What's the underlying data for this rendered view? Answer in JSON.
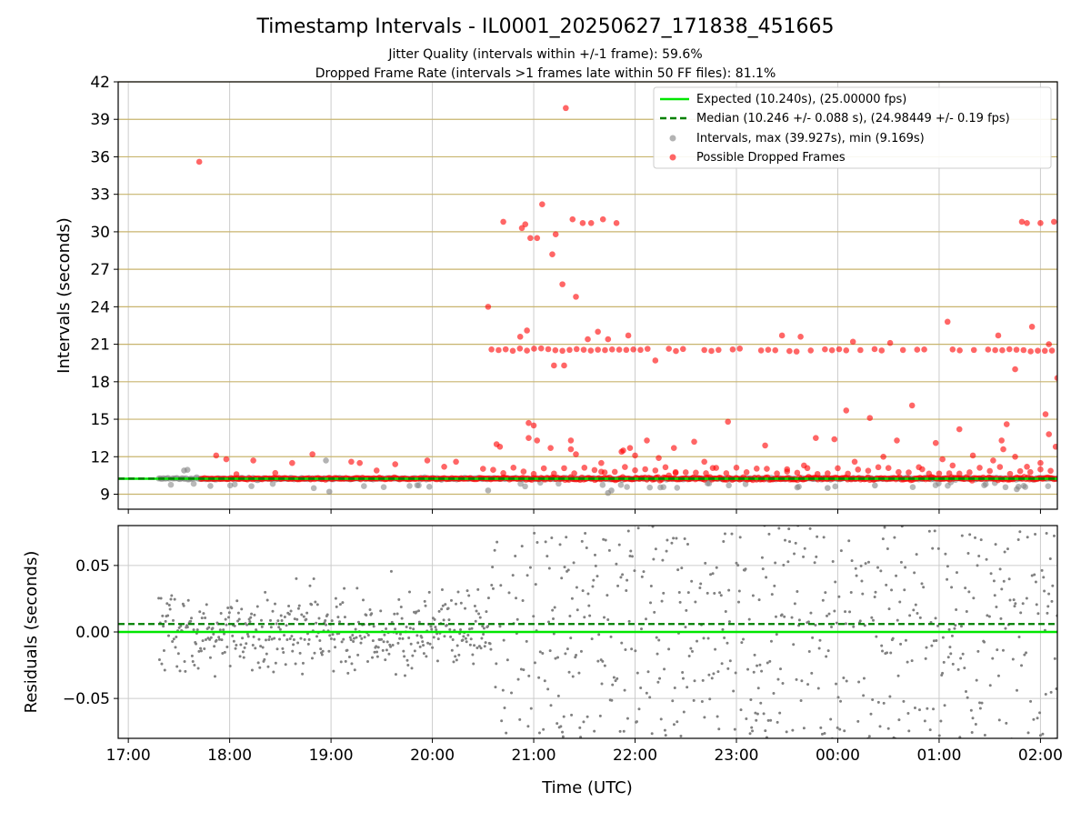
{
  "title": "Timestamp Intervals - IL0001_20250627_171838_451665",
  "subtitle1": "Jitter Quality (intervals within +/-1 frame): 59.6%",
  "subtitle2": "Dropped Frame Rate (intervals >1 frames late within 50 FF files): 81.1%",
  "colors": {
    "expected": "#00e600",
    "median": "#008000",
    "intervals": "#808080",
    "dropped": "#ff0000",
    "hgrid": "#c8b46e",
    "vgrid": "#cccccc"
  },
  "chart_data": [
    {
      "type": "scatter",
      "name": "intervals",
      "xlabel": "",
      "ylabel": "Intervals (seconds)",
      "ylim": [
        7.8,
        42
      ],
      "yticks": [
        9,
        12,
        15,
        18,
        21,
        24,
        27,
        30,
        33,
        36,
        39,
        42
      ],
      "xlim": [
        "16:54",
        "02:10"
      ],
      "grid": "horizontal tan + vertical gray",
      "legend_position": "top-right",
      "legend": [
        "Expected (10.240s), (25.00000 fps)",
        "Median (10.246 +/- 0.088 s), (24.98449 +/- 0.19 fps)",
        "Intervals, max (39.927s), min (9.169s)",
        "Possible Dropped Frames"
      ],
      "lines": {
        "expected": 10.24,
        "median": 10.246,
        "start": "17:18"
      },
      "dropped_outliers": [
        [
          "17:42",
          35.6
        ],
        [
          "17:52",
          12.1
        ],
        [
          "17:58",
          11.8
        ],
        [
          "18:04",
          10.6
        ],
        [
          "18:14",
          11.7
        ],
        [
          "18:27",
          10.7
        ],
        [
          "18:37",
          11.5
        ],
        [
          "18:49",
          12.2
        ],
        [
          "19:12",
          11.6
        ],
        [
          "19:17",
          11.5
        ],
        [
          "19:27",
          10.9
        ],
        [
          "19:38",
          11.4
        ],
        [
          "19:57",
          11.7
        ],
        [
          "20:07",
          11.2
        ],
        [
          "20:14",
          11.6
        ],
        [
          "20:38",
          13.0
        ],
        [
          "20:40",
          12.8
        ],
        [
          "20:57",
          13.5
        ],
        [
          "21:10",
          12.7
        ],
        [
          "21:22",
          12.6
        ],
        [
          "21:40",
          11.5
        ],
        [
          "21:52",
          12.4
        ],
        [
          "21:57",
          12.7
        ],
        [
          "22:14",
          11.9
        ],
        [
          "22:20",
          10.5
        ],
        [
          "22:24",
          10.7
        ],
        [
          "22:35",
          13.2
        ],
        [
          "22:41",
          11.6
        ],
        [
          "22:55",
          14.8
        ],
        [
          "22:00",
          12.1
        ],
        [
          "22:07",
          13.3
        ],
        [
          "22:23",
          12.7
        ],
        [
          "22:46",
          11.1
        ],
        [
          "23:17",
          12.9
        ],
        [
          "23:40",
          11.3
        ],
        [
          "23:47",
          13.5
        ],
        [
          "23:58",
          13.4
        ],
        [
          "00:05",
          15.7
        ],
        [
          "00:19",
          15.1
        ],
        [
          "00:35",
          13.3
        ],
        [
          "00:44",
          16.1
        ],
        [
          "00:58",
          13.1
        ],
        [
          "01:02",
          11.8
        ],
        [
          "01:12",
          14.2
        ],
        [
          "01:20",
          12.1
        ],
        [
          "01:32",
          11.7
        ],
        [
          "01:38",
          12.6
        ],
        [
          "01:45",
          12.0
        ],
        [
          "01:52",
          11.2
        ],
        [
          "02:00",
          11.5
        ],
        [
          "01:08",
          11.3
        ],
        [
          "00:27",
          12.0
        ],
        [
          "00:50",
          11.0
        ],
        [
          "00:10",
          11.6
        ],
        [
          "23:30",
          11.0
        ]
      ],
      "dropped_high": [
        [
          "20:33",
          24.0
        ],
        [
          "20:42",
          30.8
        ],
        [
          "20:53",
          30.3
        ],
        [
          "20:55",
          30.6
        ],
        [
          "20:58",
          29.5
        ],
        [
          "21:02",
          29.5
        ],
        [
          "21:11",
          28.2
        ],
        [
          "21:13",
          29.8
        ],
        [
          "21:17",
          25.8
        ],
        [
          "21:19",
          39.9
        ],
        [
          "21:23",
          31.0
        ],
        [
          "21:25",
          24.8
        ],
        [
          "21:29",
          30.7
        ],
        [
          "21:34",
          30.7
        ],
        [
          "21:41",
          31.0
        ],
        [
          "21:49",
          30.7
        ],
        [
          "21:05",
          32.2
        ],
        [
          "21:12",
          19.3
        ],
        [
          "21:18",
          19.3
        ],
        [
          "21:38",
          22.0
        ],
        [
          "21:44",
          21.4
        ],
        [
          "21:56",
          21.7
        ],
        [
          "22:12",
          19.7
        ],
        [
          "20:56",
          22.1
        ],
        [
          "20:52",
          21.6
        ],
        [
          "21:32",
          21.4
        ],
        [
          "23:27",
          21.7
        ],
        [
          "23:38",
          21.6
        ],
        [
          "01:05",
          22.8
        ],
        [
          "01:35",
          21.7
        ],
        [
          "01:55",
          22.4
        ],
        [
          "01:45",
          19.0
        ],
        [
          "02:05",
          21.0
        ],
        [
          "00:09",
          21.2
        ],
        [
          "00:31",
          21.1
        ],
        [
          "01:49",
          30.8
        ],
        [
          "01:52",
          30.7
        ],
        [
          "02:00",
          30.7
        ],
        [
          "02:08",
          30.8
        ],
        [
          "02:10",
          18.3
        ],
        [
          "02:03",
          15.4
        ],
        [
          "02:05",
          13.8
        ],
        [
          "02:09",
          12.8
        ],
        [
          "01:40",
          14.6
        ],
        [
          "01:37",
          13.3
        ],
        [
          "20:57",
          14.7
        ],
        [
          "21:00",
          14.5
        ],
        [
          "21:02",
          13.3
        ],
        [
          "21:22",
          13.3
        ],
        [
          "21:25",
          12.2
        ],
        [
          "21:53",
          12.5
        ],
        [
          "21:40",
          10.8
        ]
      ],
      "series": [
        {
          "name": "Intervals, max (39.927s), min (9.169s)"
        },
        {
          "name": "Possible Dropped Frames"
        }
      ]
    },
    {
      "type": "scatter",
      "name": "residuals",
      "xlabel": "Time (UTC)",
      "ylabel": "Residuals (seconds)",
      "ylim": [
        -0.08,
        0.08
      ],
      "yticks": [
        -0.05,
        0.0,
        0.05
      ],
      "ytick_labels": [
        "−0.05",
        "0.00",
        "0.05"
      ],
      "xticks": [
        "17:00",
        "18:00",
        "19:00",
        "20:00",
        "21:00",
        "22:00",
        "23:00",
        "00:00",
        "01:00",
        "02:00"
      ],
      "xlim": [
        "16:54",
        "02:10"
      ],
      "lines": {
        "expected": 0.0,
        "median": 0.006
      },
      "spread_before_2035": 0.025,
      "spread_after_2035": 0.05
    }
  ]
}
